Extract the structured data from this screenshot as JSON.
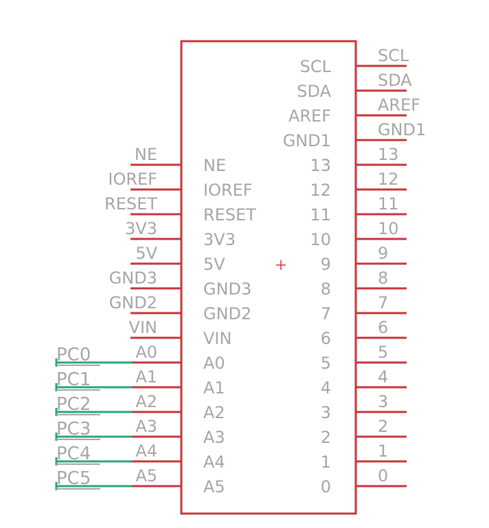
{
  "component": {
    "left_pins": [
      "NE",
      "IOREF",
      "RESET",
      "3V3",
      "5V",
      "GND3",
      "GND2",
      "VIN",
      "A0",
      "A1",
      "A2",
      "A3",
      "A4",
      "A5"
    ],
    "right_top_pins": [
      "SCL",
      "SDA",
      "AREF",
      "GND1"
    ],
    "right_digital_pins": [
      "13",
      "12",
      "11",
      "10",
      "9",
      "8",
      "7",
      "6",
      "5",
      "4",
      "3",
      "2",
      "1",
      "0"
    ]
  },
  "nets": [
    "PC0",
    "PC1",
    "PC2",
    "PC3",
    "PC4",
    "PC5"
  ],
  "colors": {
    "symbol": "#c8343a",
    "wire": "#2aa57c",
    "text": "#a6a6a6"
  }
}
